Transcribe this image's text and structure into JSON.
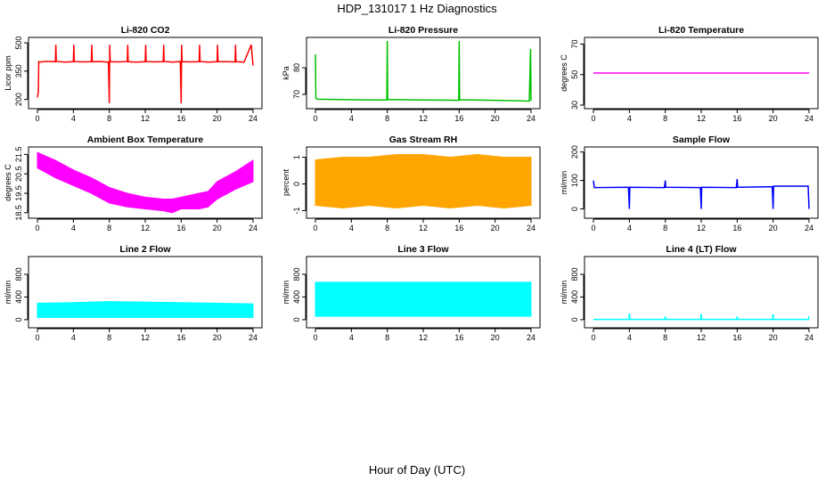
{
  "title": "HDP_131017  1 Hz Diagnostics",
  "xlabel": "Hour of Day (UTC)",
  "chart_data": [
    {
      "type": "line",
      "title": "Li-820 CO2",
      "ylabel": "Licor ppm",
      "color": "#ff0000",
      "style": "line",
      "xlim": [
        0,
        24
      ],
      "ylim": [
        170,
        510
      ],
      "xticks": [
        0,
        4,
        8,
        12,
        16,
        20,
        24
      ],
      "yticks": [
        200,
        350,
        500
      ],
      "series": [
        {
          "x": [
            0,
            0.1,
            0.15,
            0.25,
            1,
            2,
            2.05,
            2.1,
            3,
            4,
            4.05,
            4.1,
            5,
            6,
            6.05,
            6.1,
            7,
            7.9,
            8,
            8.05,
            8.1,
            9,
            10,
            10.05,
            10.1,
            11,
            12,
            12.05,
            12.1,
            13,
            14,
            14.05,
            14.1,
            15,
            15.9,
            16,
            16.05,
            16.1,
            17,
            18,
            18.05,
            18.1,
            19,
            20,
            20.05,
            20.1,
            21,
            22,
            22.05,
            22.1,
            23,
            23.8,
            24
          ],
          "y": [
            210,
            240,
            400,
            398,
            402,
            400,
            490,
            402,
            398,
            400,
            490,
            401,
            399,
            400,
            490,
            400,
            401,
            398,
            180,
            490,
            400,
            399,
            401,
            490,
            400,
            398,
            400,
            490,
            401,
            399,
            400,
            490,
            402,
            398,
            401,
            180,
            490,
            400,
            399,
            400,
            490,
            401,
            398,
            400,
            490,
            401,
            400,
            399,
            490,
            400,
            398,
            490,
            380
          ]
        }
      ]
    },
    {
      "type": "line",
      "title": "Li-820 Pressure",
      "ylabel": "kPa",
      "color": "#00c000",
      "style": "line",
      "xlim": [
        0,
        24
      ],
      "ylim": [
        66,
        90
      ],
      "xticks": [
        0,
        4,
        8,
        12,
        16,
        20,
        24
      ],
      "yticks": [
        70,
        80
      ],
      "series": [
        {
          "x": [
            0,
            0.05,
            0.2,
            4,
            7.95,
            8,
            8.05,
            12,
            15.95,
            16,
            16.05,
            20,
            23.8,
            23.95,
            24
          ],
          "y": [
            85,
            68.5,
            68.2,
            68,
            67.9,
            90,
            68.1,
            67.9,
            67.8,
            90,
            68,
            67.8,
            67.5,
            87,
            67.6
          ]
        }
      ]
    },
    {
      "type": "line",
      "title": "Li-820 Temperature",
      "ylabel": "degrees C",
      "color": "#ff00ff",
      "style": "line",
      "xlim": [
        0,
        24
      ],
      "ylim": [
        30,
        72
      ],
      "xticks": [
        0,
        4,
        8,
        12,
        16,
        20,
        24
      ],
      "yticks": [
        30,
        50,
        70
      ],
      "series": [
        {
          "x": [
            0,
            24
          ],
          "y": [
            51,
            51
          ]
        }
      ]
    },
    {
      "type": "area",
      "title": "Ambient Box Temperature",
      "ylabel": "degrees C",
      "color": "#ff00ff",
      "style": "band",
      "xlim": [
        0,
        24
      ],
      "ylim": [
        18.4,
        21.7
      ],
      "xticks": [
        0,
        4,
        8,
        12,
        16,
        20,
        24
      ],
      "yticks": [
        18.5,
        19.5,
        20.5,
        21.5
      ],
      "series": [
        {
          "x": [
            0,
            2,
            4,
            6,
            8,
            10,
            12,
            14,
            15,
            16,
            18,
            19,
            20,
            22,
            24
          ],
          "low": [
            20.8,
            20.3,
            19.9,
            19.5,
            19.0,
            18.8,
            18.7,
            18.6,
            18.5,
            18.7,
            18.7,
            18.8,
            19.2,
            19.7,
            20.1
          ],
          "high": [
            21.6,
            21.2,
            20.7,
            20.3,
            19.8,
            19.5,
            19.3,
            19.2,
            19.2,
            19.3,
            19.5,
            19.6,
            20.1,
            20.6,
            21.2
          ]
        }
      ]
    },
    {
      "type": "area",
      "title": "Gas Stream RH",
      "ylabel": "percent",
      "color": "#ffa500",
      "style": "band",
      "xlim": [
        0,
        24
      ],
      "ylim": [
        -1.15,
        1.25
      ],
      "xticks": [
        0,
        4,
        8,
        12,
        16,
        20,
        24
      ],
      "yticks": [
        -1.0,
        0.0,
        1.0
      ],
      "series": [
        {
          "x": [
            0,
            3,
            6,
            9,
            12,
            15,
            18,
            21,
            24
          ],
          "low": [
            -0.8,
            -0.9,
            -0.8,
            -0.9,
            -0.8,
            -0.9,
            -0.8,
            -0.9,
            -0.8
          ],
          "high": [
            0.9,
            1.0,
            1.0,
            1.1,
            1.1,
            1.0,
            1.1,
            1.0,
            1.0
          ]
        }
      ]
    },
    {
      "type": "line",
      "title": "Sample Flow",
      "ylabel": "ml/min",
      "color": "#0000ff",
      "style": "line",
      "xlim": [
        0,
        24
      ],
      "ylim": [
        -20,
        205
      ],
      "xticks": [
        0,
        4,
        8,
        12,
        16,
        20,
        24
      ],
      "yticks": [
        0,
        100,
        200
      ],
      "series": [
        {
          "x": [
            0,
            0.1,
            3.9,
            4,
            4.05,
            7.9,
            8,
            8.05,
            11.9,
            12,
            12.05,
            15.9,
            16,
            16.05,
            19.9,
            20,
            20.05,
            23.9,
            24
          ],
          "y": [
            100,
            75,
            76,
            0,
            76,
            75,
            100,
            76,
            75,
            0,
            76,
            75,
            105,
            76,
            78,
            0,
            80,
            80,
            0
          ]
        }
      ]
    },
    {
      "type": "area",
      "title": "Line 2 Flow",
      "ylabel": "ml/min",
      "color": "#00ffff",
      "style": "band",
      "xlim": [
        0,
        24
      ],
      "ylim": [
        -80,
        1050
      ],
      "xticks": [
        0,
        4,
        8,
        12,
        16,
        20,
        24
      ],
      "yticks": [
        0,
        400,
        800
      ],
      "series": [
        {
          "x": [
            0,
            4,
            8,
            12,
            16,
            20,
            24
          ],
          "low": [
            40,
            40,
            40,
            40,
            40,
            40,
            40
          ],
          "high": [
            290,
            300,
            320,
            310,
            300,
            290,
            280
          ]
        }
      ]
    },
    {
      "type": "area",
      "title": "Line 3 Flow",
      "ylabel": "ml/min",
      "color": "#00ffff",
      "style": "band",
      "xlim": [
        0,
        24
      ],
      "ylim": [
        -80,
        1050
      ],
      "xticks": [
        0,
        4,
        8,
        12,
        16,
        20,
        24
      ],
      "yticks": [
        0,
        400,
        800
      ],
      "series": [
        {
          "x": [
            0,
            4,
            8,
            12,
            16,
            20,
            24
          ],
          "low": [
            60,
            60,
            60,
            60,
            60,
            60,
            60
          ],
          "high": [
            660,
            660,
            660,
            660,
            660,
            660,
            660
          ]
        }
      ]
    },
    {
      "type": "line",
      "title": "Line 4 (LT) Flow",
      "ylabel": "ml/min",
      "color": "#00ffff",
      "style": "line",
      "xlim": [
        0,
        24
      ],
      "ylim": [
        -80,
        1050
      ],
      "xticks": [
        0,
        4,
        8,
        12,
        16,
        20,
        24
      ],
      "yticks": [
        0,
        400,
        800
      ],
      "series": [
        {
          "x": [
            0,
            3.95,
            4,
            4.05,
            7.95,
            8,
            8.05,
            11.95,
            12,
            12.05,
            15.95,
            16,
            16.05,
            19.95,
            20,
            20.05,
            23.95,
            24
          ],
          "y": [
            5,
            5,
            110,
            5,
            5,
            60,
            5,
            5,
            100,
            5,
            5,
            60,
            5,
            5,
            100,
            5,
            5,
            60
          ]
        }
      ]
    }
  ]
}
